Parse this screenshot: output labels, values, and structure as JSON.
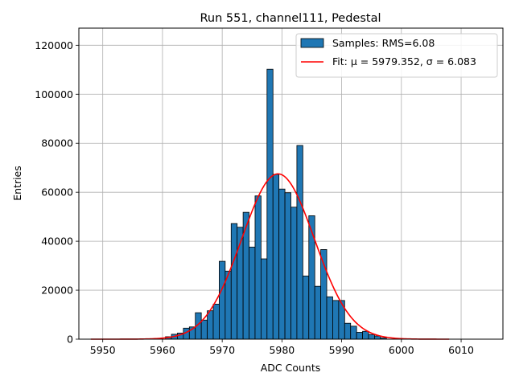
{
  "chart_data": {
    "type": "bar",
    "title": "Run 551, channel111, Pedestal",
    "xlabel": "ADC Counts",
    "ylabel": "Entries",
    "xlim": [
      5946,
      6017
    ],
    "ylim": [
      0,
      127000
    ],
    "xticks": [
      5950,
      5960,
      5970,
      5980,
      5990,
      6000,
      6010
    ],
    "yticks": [
      0,
      20000,
      40000,
      60000,
      80000,
      100000,
      120000
    ],
    "grid": true,
    "legend_position": "top-right",
    "colors": {
      "bars": "#1f77b4",
      "bar_edge": "#000000",
      "fit": "#ff0000",
      "grid": "#b0b0b0"
    },
    "histogram": {
      "name": "Samples: RMS=6.08",
      "bins": [
        {
          "x": 5961,
          "y": 1000
        },
        {
          "x": 5962,
          "y": 2000
        },
        {
          "x": 5963,
          "y": 2500
        },
        {
          "x": 5964,
          "y": 4500
        },
        {
          "x": 5965,
          "y": 5000
        },
        {
          "x": 5966,
          "y": 10800
        },
        {
          "x": 5967,
          "y": 7800
        },
        {
          "x": 5968,
          "y": 11600
        },
        {
          "x": 5969,
          "y": 14300
        },
        {
          "x": 5970,
          "y": 31800
        },
        {
          "x": 5971,
          "y": 27800
        },
        {
          "x": 5972,
          "y": 47200
        },
        {
          "x": 5973,
          "y": 45700
        },
        {
          "x": 5974,
          "y": 51800
        },
        {
          "x": 5975,
          "y": 37600
        },
        {
          "x": 5976,
          "y": 58500
        },
        {
          "x": 5977,
          "y": 32800
        },
        {
          "x": 5978,
          "y": 110200
        },
        {
          "x": 5979,
          "y": 67300
        },
        {
          "x": 5980,
          "y": 61300
        },
        {
          "x": 5981,
          "y": 59800
        },
        {
          "x": 5982,
          "y": 53900
        },
        {
          "x": 5983,
          "y": 79100
        },
        {
          "x": 5984,
          "y": 25800
        },
        {
          "x": 5985,
          "y": 50400
        },
        {
          "x": 5986,
          "y": 21600
        },
        {
          "x": 5987,
          "y": 36600
        },
        {
          "x": 5988,
          "y": 17300
        },
        {
          "x": 5989,
          "y": 15800
        },
        {
          "x": 5990,
          "y": 15800
        },
        {
          "x": 5991,
          "y": 6500
        },
        {
          "x": 5992,
          "y": 5300
        },
        {
          "x": 5993,
          "y": 2800
        },
        {
          "x": 5994,
          "y": 3200
        },
        {
          "x": 5995,
          "y": 1900
        },
        {
          "x": 5996,
          "y": 1300
        },
        {
          "x": 5997,
          "y": 500
        }
      ]
    },
    "fit": {
      "name": "Fit: μ = 5979.352, σ = 6.083",
      "mu": 5979.352,
      "sigma": 6.083,
      "amplitude": 67500,
      "x_range": [
        5948,
        6008
      ]
    }
  }
}
